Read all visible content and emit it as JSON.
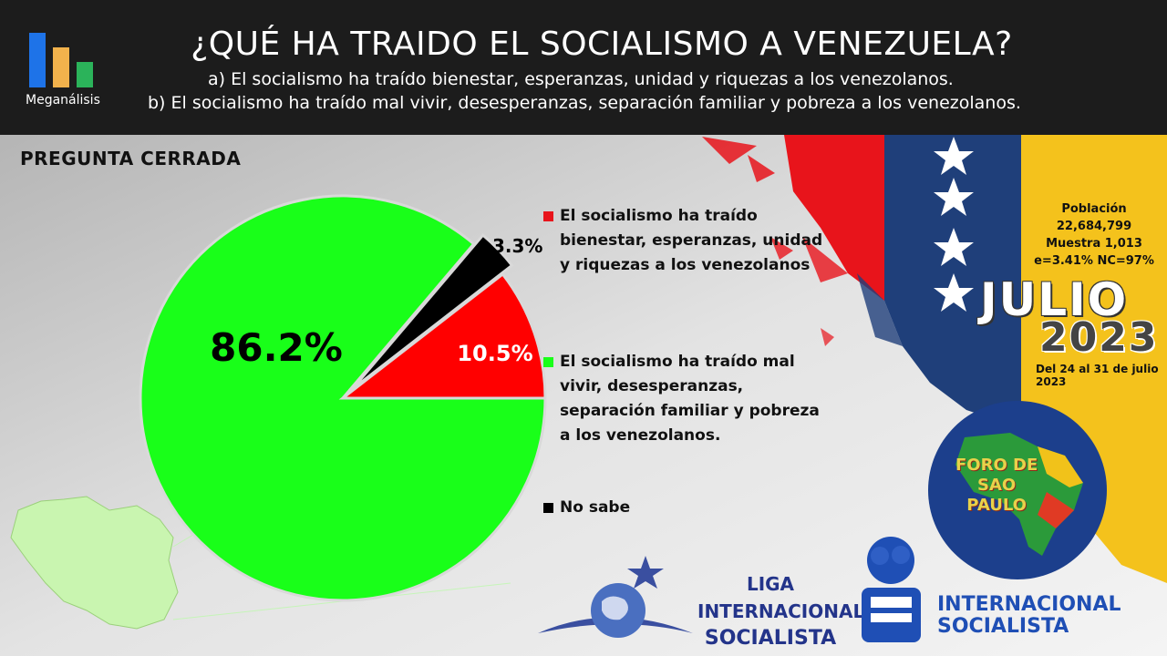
{
  "header": {
    "brand": "Meganálisis",
    "title": "¿QUÉ HA TRAIDO EL SOCIALISMO A VENEZUELA?",
    "option_a": "a)   El socialismo ha traído bienestar, esperanzas, unidad y riquezas a los venezolanos.",
    "option_b": "b) El socialismo ha traído mal vivir, desesperanzas, separación familiar y pobreza a los venezolanos."
  },
  "question_type": "PREGUNTA  CERRADA",
  "chart_data": {
    "type": "pie",
    "slices": [
      {
        "label": "El socialismo ha traído mal vivir, desesperanzas, separación familiar y pobreza a los venezolanos.",
        "value": 86.2,
        "display": "86.2%",
        "color": "#19ff19"
      },
      {
        "label": "El socialismo ha traído bienestar, esperanzas, unidad y riquezas a los venezolanos",
        "value": 10.5,
        "display": "10.5%",
        "color": "#ff0000"
      },
      {
        "label": "No sabe",
        "value": 3.3,
        "display": "3.3%",
        "color": "#000000"
      }
    ],
    "legend": [
      {
        "text": "El socialismo ha traído bienestar, esperanzas, unidad y riquezas a los venezolanos",
        "color": "#e8141b"
      },
      {
        "text": "El socialismo ha traído mal vivir, desesperanzas, separación familiar y pobreza a los venezolanos.",
        "color": "#19ff19"
      },
      {
        "text": "No sabe",
        "color": "#000000"
      }
    ],
    "legend_placement": "right"
  },
  "sample": {
    "line1": "Población",
    "line2": "22,684,799",
    "line3": "Muestra 1,013",
    "line4": "e=3.41%  NC=97%"
  },
  "period": {
    "month": "JULIO",
    "year": "2023",
    "dates": "Del 24 al 31 de julio 2023"
  },
  "logos": {
    "foro_line1": "FORO DE",
    "foro_line2": "SAO",
    "foro_line3": "PAULO",
    "liga_line1": "LIGA INTERNACIONAL",
    "liga_line2": "SOCIALISTA",
    "internacional_line1": "INTERNACIONAL",
    "internacional_line2": "SOCIALISTA"
  },
  "colors": {
    "header_bg": "#1c1c1c",
    "logo_blue": "#1e73e8",
    "logo_orange": "#f2b24c",
    "logo_green": "#2bb35a"
  }
}
